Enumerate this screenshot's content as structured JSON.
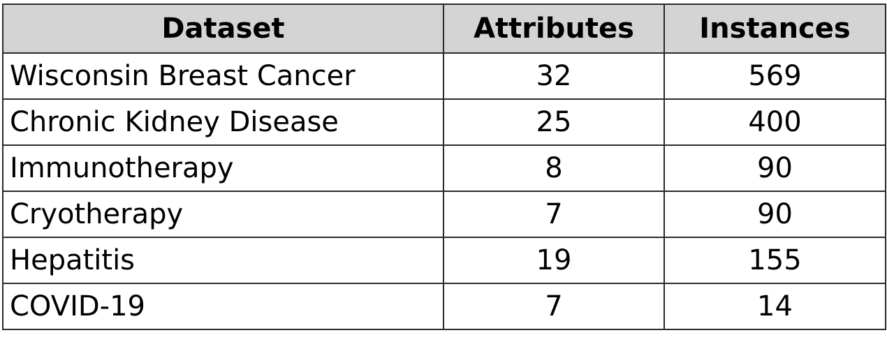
{
  "table": {
    "headers": [
      "Dataset",
      "Attributes",
      "Instances"
    ],
    "rows": [
      [
        "Wisconsin Breast Cancer",
        "32",
        "569"
      ],
      [
        "Chronic Kidney Disease",
        "25",
        "400"
      ],
      [
        "Immunotherapy",
        "8",
        "90"
      ],
      [
        "Cryotherapy",
        "7",
        "90"
      ],
      [
        "Hepatitis",
        "19",
        "155"
      ],
      [
        "COVID-19",
        "7",
        "14"
      ]
    ],
    "header_background": "#d4d4d4",
    "border_color": "#2a2a2a"
  }
}
